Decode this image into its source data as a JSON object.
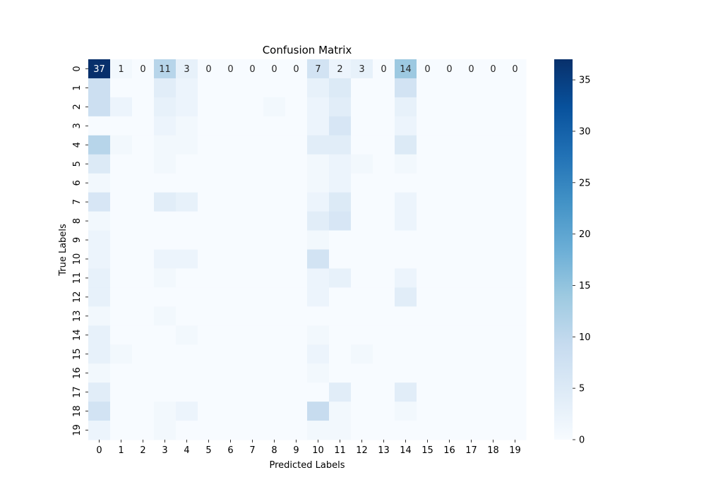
{
  "chart_data": {
    "type": "heatmap",
    "title": "Confusion Matrix",
    "xlabel": "Predicted Labels",
    "ylabel": "True Labels",
    "x_labels": [
      "0",
      "1",
      "2",
      "3",
      "4",
      "5",
      "6",
      "7",
      "8",
      "9",
      "10",
      "11",
      "12",
      "13",
      "14",
      "15",
      "16",
      "17",
      "18",
      "19"
    ],
    "y_labels": [
      "0",
      "1",
      "2",
      "3",
      "4",
      "5",
      "6",
      "7",
      "8",
      "9",
      "10",
      "11",
      "12",
      "13",
      "14",
      "15",
      "16",
      "17",
      "18",
      "19"
    ],
    "values": [
      [
        37,
        1,
        0,
        11,
        3,
        0,
        0,
        0,
        0,
        0,
        7,
        2,
        3,
        0,
        14,
        0,
        0,
        0,
        0,
        0
      ],
      [
        8,
        0,
        0,
        4,
        2,
        0,
        0,
        0,
        0,
        0,
        3,
        5,
        0,
        0,
        7,
        0,
        0,
        0,
        0,
        0
      ],
      [
        8,
        2,
        0,
        3,
        2,
        0,
        0,
        0,
        1,
        0,
        2,
        4,
        0,
        0,
        3,
        0,
        0,
        0,
        0,
        0
      ],
      [
        0,
        0,
        0,
        2,
        1,
        0,
        0,
        0,
        0,
        0,
        2,
        6,
        0,
        0,
        2,
        0,
        0,
        0,
        0,
        0
      ],
      [
        11,
        1,
        0,
        1,
        1,
        0,
        0,
        0,
        0,
        0,
        4,
        4,
        0,
        0,
        5,
        0,
        0,
        0,
        0,
        0
      ],
      [
        5,
        0,
        0,
        1,
        0,
        0,
        0,
        0,
        0,
        0,
        1,
        2,
        1,
        0,
        1,
        0,
        0,
        0,
        0,
        0
      ],
      [
        1,
        0,
        0,
        0,
        0,
        0,
        0,
        0,
        0,
        0,
        1,
        2,
        0,
        0,
        0,
        0,
        0,
        0,
        0,
        0
      ],
      [
        6,
        0,
        0,
        4,
        3,
        0,
        0,
        0,
        0,
        0,
        2,
        5,
        0,
        0,
        2,
        0,
        0,
        0,
        0,
        0
      ],
      [
        1,
        0,
        0,
        0,
        0,
        0,
        0,
        0,
        0,
        0,
        4,
        6,
        0,
        0,
        2,
        0,
        0,
        0,
        0,
        0
      ],
      [
        2,
        0,
        0,
        0,
        0,
        0,
        0,
        0,
        0,
        0,
        1,
        0,
        0,
        0,
        0,
        0,
        0,
        0,
        0,
        0
      ],
      [
        2,
        0,
        0,
        2,
        2,
        0,
        0,
        0,
        0,
        0,
        7,
        0,
        0,
        0,
        0,
        0,
        0,
        0,
        0,
        0
      ],
      [
        3,
        0,
        0,
        1,
        0,
        0,
        0,
        0,
        0,
        0,
        2,
        3,
        0,
        0,
        2,
        0,
        0,
        0,
        0,
        0
      ],
      [
        3,
        0,
        0,
        0,
        0,
        0,
        0,
        0,
        0,
        0,
        2,
        0,
        0,
        0,
        4,
        0,
        0,
        0,
        0,
        0
      ],
      [
        1,
        0,
        0,
        1,
        0,
        0,
        0,
        0,
        0,
        0,
        0,
        0,
        0,
        0,
        0,
        0,
        0,
        0,
        0,
        0
      ],
      [
        3,
        0,
        0,
        0,
        1,
        0,
        0,
        0,
        0,
        0,
        1,
        0,
        0,
        0,
        0,
        0,
        0,
        0,
        0,
        0
      ],
      [
        3,
        1,
        0,
        0,
        0,
        0,
        0,
        0,
        0,
        0,
        2,
        0,
        1,
        0,
        0,
        0,
        0,
        0,
        0,
        0
      ],
      [
        1,
        0,
        0,
        0,
        0,
        0,
        0,
        0,
        0,
        0,
        1,
        0,
        0,
        0,
        0,
        0,
        0,
        0,
        0,
        0
      ],
      [
        4,
        0,
        0,
        0,
        0,
        0,
        0,
        0,
        0,
        0,
        0,
        4,
        0,
        0,
        4,
        0,
        0,
        0,
        0,
        0
      ],
      [
        7,
        0,
        0,
        1,
        2,
        0,
        0,
        0,
        0,
        0,
        9,
        1,
        0,
        0,
        1,
        0,
        0,
        0,
        0,
        0
      ],
      [
        2,
        0,
        0,
        1,
        0,
        0,
        0,
        0,
        0,
        0,
        1,
        1,
        0,
        0,
        0,
        0,
        0,
        0,
        0,
        0
      ]
    ],
    "annotated_rows": [
      0
    ],
    "colormap": "Blues",
    "colorbar_range": [
      0,
      37
    ],
    "colorbar_ticks": [
      0,
      5,
      10,
      15,
      20,
      25,
      30,
      35
    ],
    "grid": false
  }
}
